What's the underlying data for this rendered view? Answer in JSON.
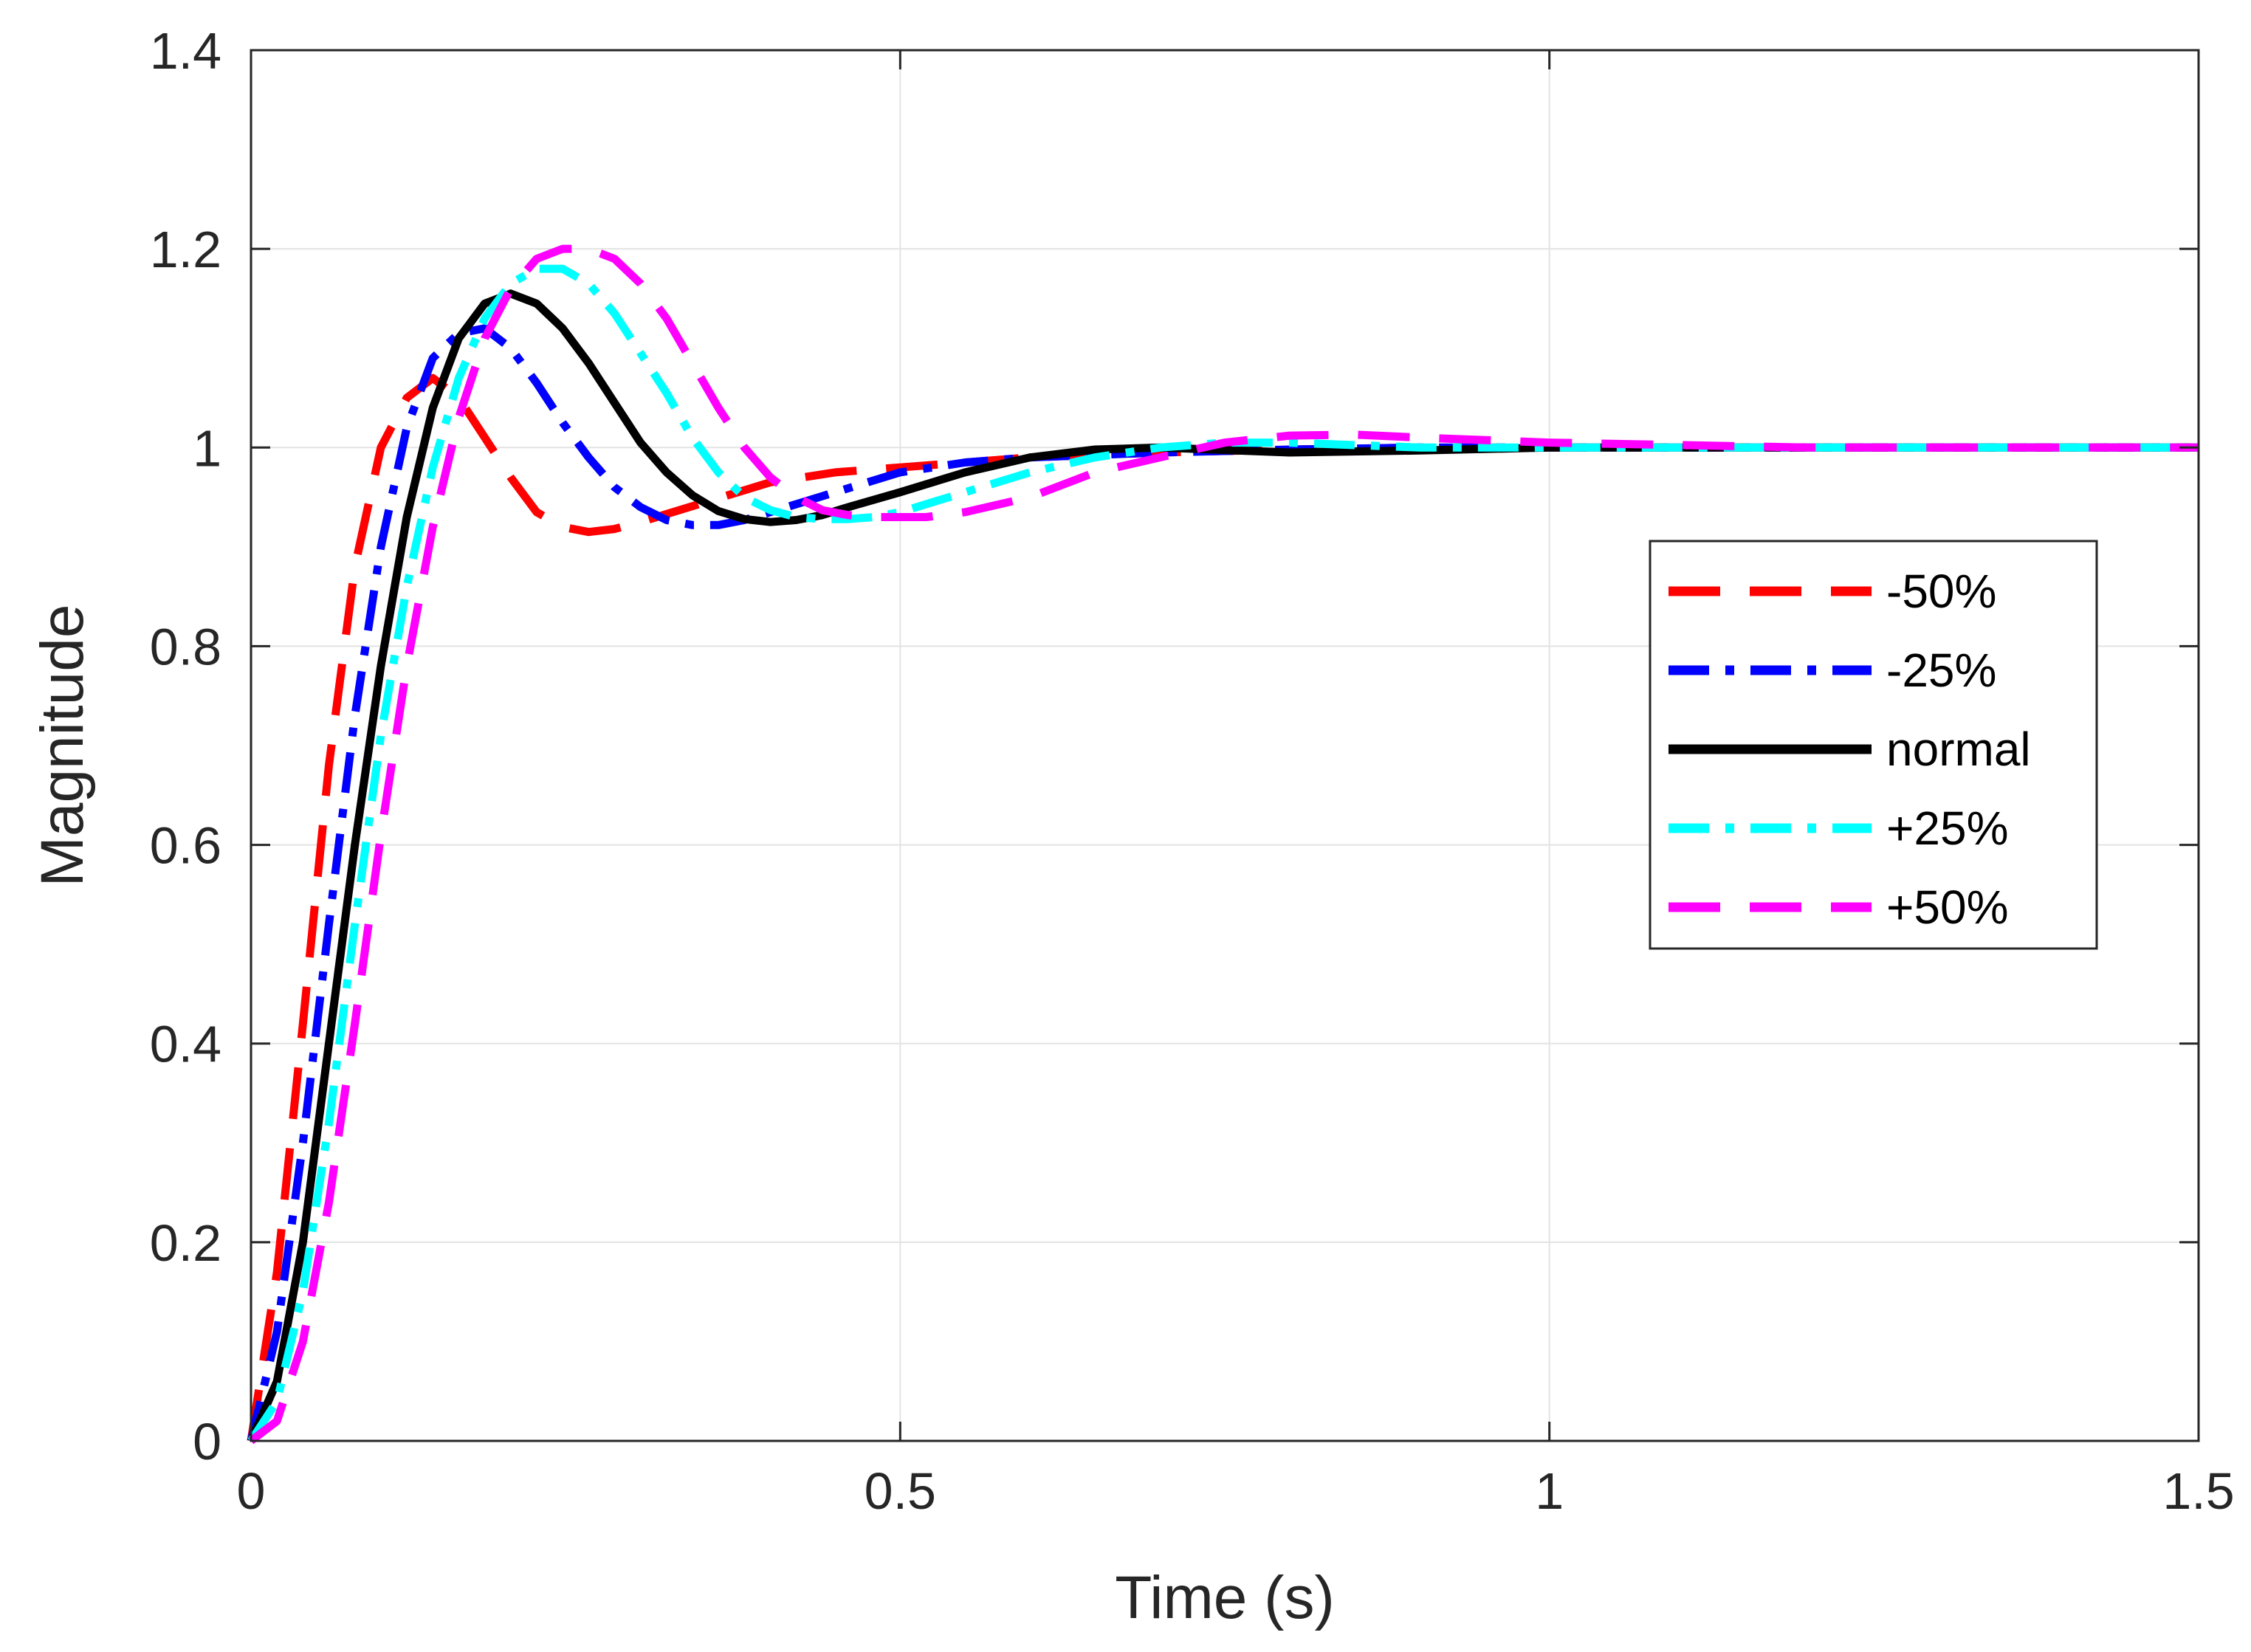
{
  "chart_data": {
    "type": "line",
    "xlabel": "Time (s)",
    "ylabel": "Magnitude",
    "xlim": [
      0,
      1.5
    ],
    "ylim": [
      0,
      1.4
    ],
    "xticks": [
      0,
      0.5,
      1,
      1.5
    ],
    "xtick_labels": [
      "0",
      "0.5",
      "1",
      "1.5"
    ],
    "yticks": [
      0,
      0.2,
      0.4,
      0.6,
      0.8,
      1.0,
      1.2,
      1.4
    ],
    "ytick_labels": [
      "0",
      "0.2",
      "0.4",
      "0.6",
      "0.8",
      "1",
      "1.2",
      "1.4"
    ],
    "grid": true,
    "legend_position": "right",
    "series": [
      {
        "name": "-50%",
        "color": "#ff0000",
        "style": "dashed",
        "x": [
          0,
          0.02,
          0.04,
          0.06,
          0.08,
          0.1,
          0.12,
          0.14,
          0.16,
          0.18,
          0.2,
          0.22,
          0.24,
          0.26,
          0.28,
          0.3,
          0.35,
          0.4,
          0.45,
          0.5,
          0.55,
          0.6,
          0.7,
          0.8,
          0.9,
          1.0,
          1.2,
          1.5
        ],
        "y": [
          0,
          0.17,
          0.42,
          0.68,
          0.88,
          1.0,
          1.05,
          1.07,
          1.05,
          1.01,
          0.97,
          0.935,
          0.92,
          0.915,
          0.918,
          0.925,
          0.945,
          0.965,
          0.975,
          0.98,
          0.985,
          0.99,
          0.995,
          0.998,
          1.0,
          1.0,
          1.0,
          1.0
        ]
      },
      {
        "name": "-25%",
        "color": "#0000ff",
        "style": "dashdot",
        "x": [
          0,
          0.02,
          0.04,
          0.06,
          0.08,
          0.1,
          0.12,
          0.14,
          0.16,
          0.18,
          0.2,
          0.22,
          0.24,
          0.26,
          0.28,
          0.3,
          0.32,
          0.34,
          0.36,
          0.38,
          0.4,
          0.45,
          0.5,
          0.55,
          0.6,
          0.7,
          0.8,
          0.9,
          1.0,
          1.2,
          1.5
        ],
        "y": [
          0,
          0.11,
          0.3,
          0.52,
          0.73,
          0.9,
          1.02,
          1.09,
          1.115,
          1.12,
          1.1,
          1.065,
          1.025,
          0.99,
          0.96,
          0.94,
          0.927,
          0.922,
          0.922,
          0.927,
          0.935,
          0.955,
          0.975,
          0.985,
          0.99,
          0.995,
          0.998,
          1.0,
          1.0,
          1.0,
          1.0
        ]
      },
      {
        "name": "normal",
        "color": "#000000",
        "style": "solid",
        "x": [
          0,
          0.02,
          0.04,
          0.06,
          0.08,
          0.1,
          0.12,
          0.14,
          0.16,
          0.18,
          0.2,
          0.22,
          0.24,
          0.26,
          0.28,
          0.3,
          0.32,
          0.34,
          0.36,
          0.38,
          0.4,
          0.42,
          0.44,
          0.46,
          0.5,
          0.55,
          0.6,
          0.65,
          0.7,
          0.8,
          0.9,
          1.0,
          1.2,
          1.5
        ],
        "y": [
          0,
          0.06,
          0.2,
          0.4,
          0.6,
          0.78,
          0.93,
          1.04,
          1.11,
          1.145,
          1.155,
          1.145,
          1.12,
          1.085,
          1.045,
          1.005,
          0.975,
          0.952,
          0.936,
          0.928,
          0.925,
          0.927,
          0.932,
          0.94,
          0.955,
          0.975,
          0.99,
          0.998,
          1.0,
          0.995,
          0.997,
          1.0,
          1.0,
          1.0
        ]
      },
      {
        "name": "+25%",
        "color": "#00ffff",
        "style": "dashdot",
        "x": [
          0,
          0.02,
          0.04,
          0.06,
          0.08,
          0.1,
          0.12,
          0.14,
          0.16,
          0.18,
          0.2,
          0.22,
          0.24,
          0.26,
          0.28,
          0.3,
          0.32,
          0.34,
          0.36,
          0.38,
          0.4,
          0.42,
          0.44,
          0.46,
          0.48,
          0.5,
          0.55,
          0.6,
          0.65,
          0.7,
          0.75,
          0.8,
          0.9,
          1.0,
          1.2,
          1.5
        ],
        "y": [
          0,
          0.04,
          0.15,
          0.32,
          0.52,
          0.71,
          0.86,
          0.98,
          1.07,
          1.13,
          1.165,
          1.18,
          1.18,
          1.165,
          1.135,
          1.095,
          1.055,
          1.01,
          0.975,
          0.95,
          0.937,
          0.93,
          0.928,
          0.928,
          0.93,
          0.935,
          0.955,
          0.975,
          0.99,
          1.0,
          1.005,
          1.005,
          1.0,
          1.0,
          1.0,
          1.0
        ]
      },
      {
        "name": "+50%",
        "color": "#ff00ff",
        "style": "dashed",
        "x": [
          0,
          0.02,
          0.04,
          0.06,
          0.08,
          0.1,
          0.12,
          0.14,
          0.16,
          0.18,
          0.2,
          0.22,
          0.24,
          0.26,
          0.28,
          0.3,
          0.32,
          0.34,
          0.36,
          0.38,
          0.4,
          0.42,
          0.44,
          0.46,
          0.48,
          0.5,
          0.52,
          0.55,
          0.6,
          0.65,
          0.7,
          0.75,
          0.8,
          0.85,
          0.9,
          1.0,
          1.2,
          1.5
        ],
        "y": [
          0,
          0.02,
          0.1,
          0.24,
          0.42,
          0.61,
          0.78,
          0.92,
          1.03,
          1.11,
          1.16,
          1.19,
          1.2,
          1.2,
          1.19,
          1.165,
          1.13,
          1.085,
          1.04,
          1.0,
          0.97,
          0.95,
          0.937,
          0.932,
          0.93,
          0.93,
          0.93,
          0.935,
          0.95,
          0.975,
          0.99,
          1.005,
          1.012,
          1.013,
          1.01,
          1.005,
          1.0,
          1.0
        ]
      }
    ]
  }
}
